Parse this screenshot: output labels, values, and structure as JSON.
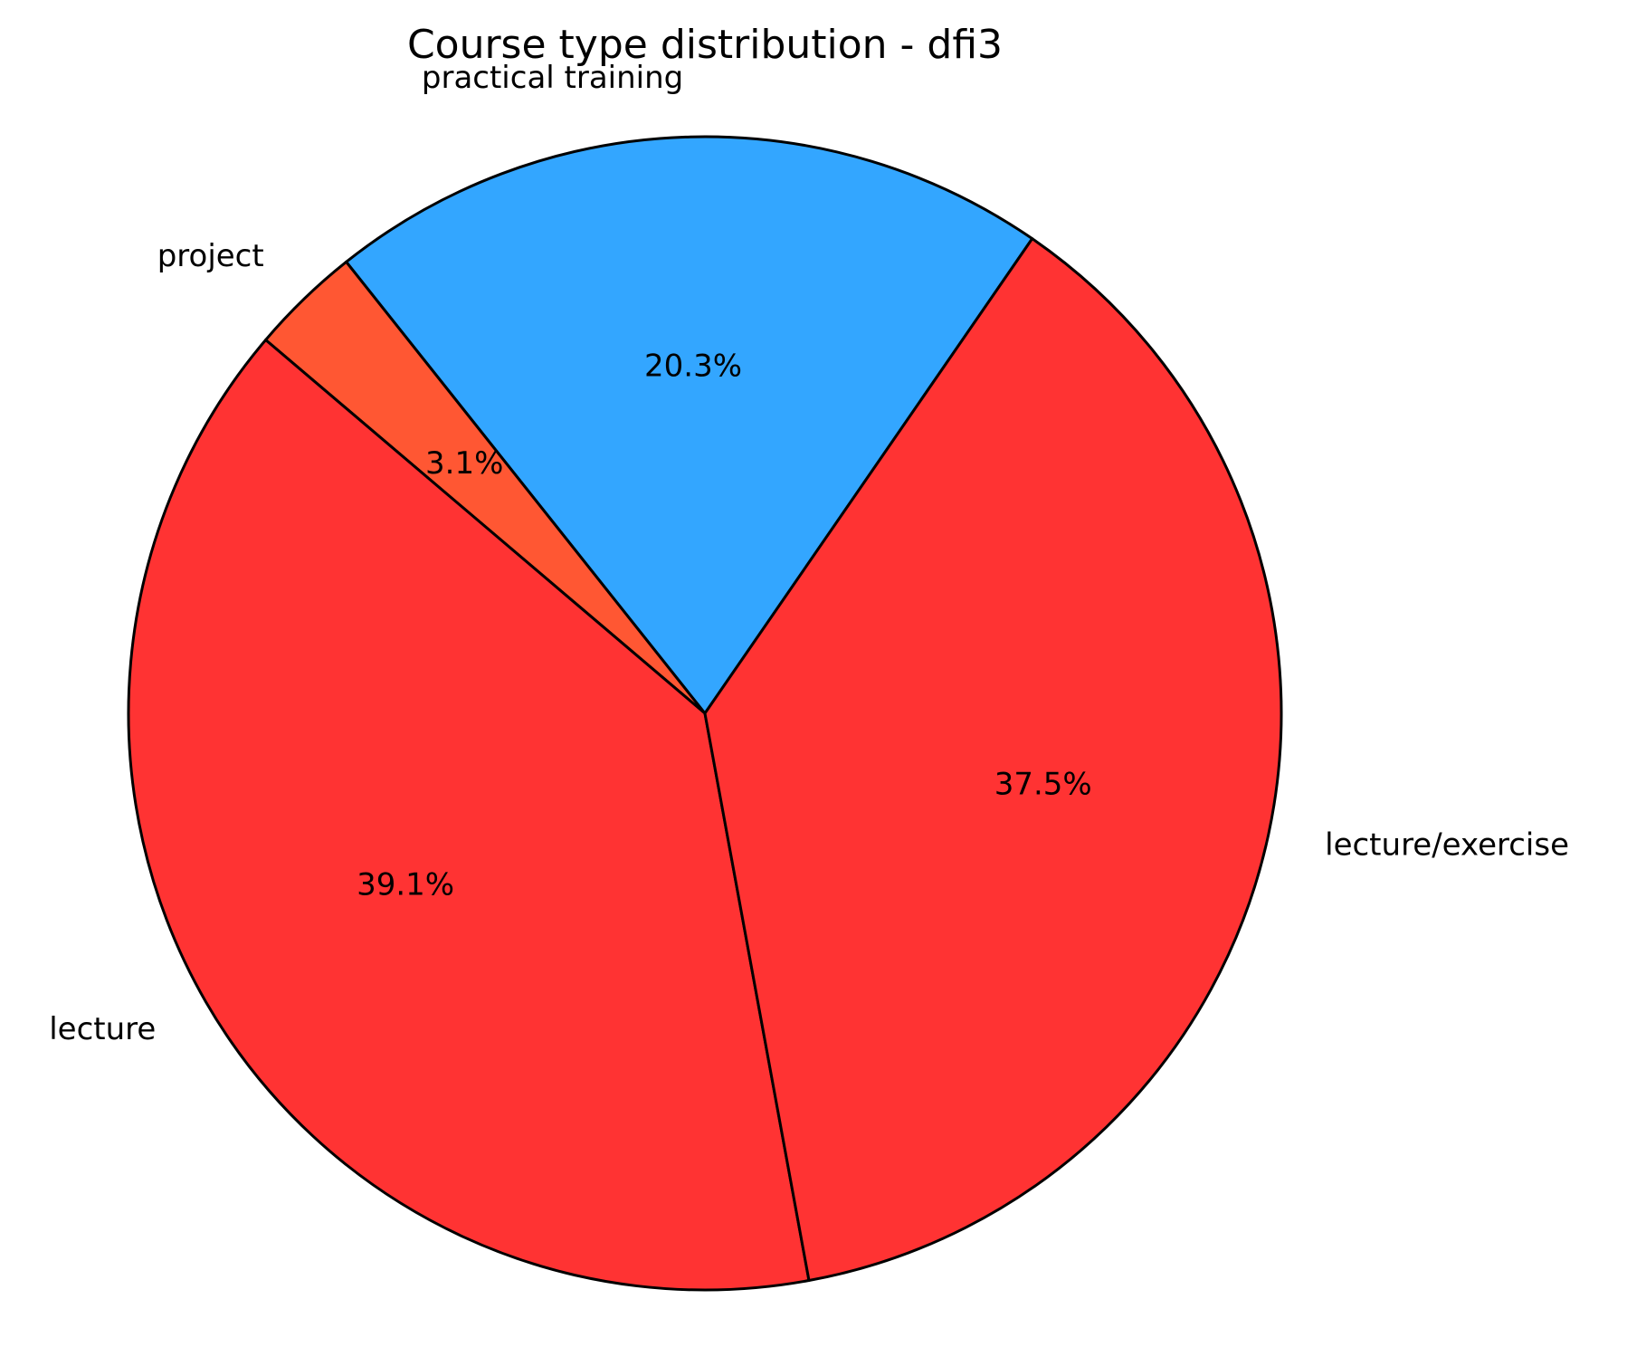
{
  "chart_data": {
    "type": "pie",
    "title": "Course type distribution - dfi3",
    "categories": [
      "practical training",
      "project",
      "lecture",
      "lecture/exercise"
    ],
    "values": [
      20.3,
      3.1,
      39.1,
      37.5
    ],
    "value_labels": [
      "20.3%",
      "3.1%",
      "39.1%",
      "37.5%"
    ],
    "colors": [
      "#33a6ff",
      "#ff5733",
      "#ff3333",
      "#ff3333"
    ]
  }
}
